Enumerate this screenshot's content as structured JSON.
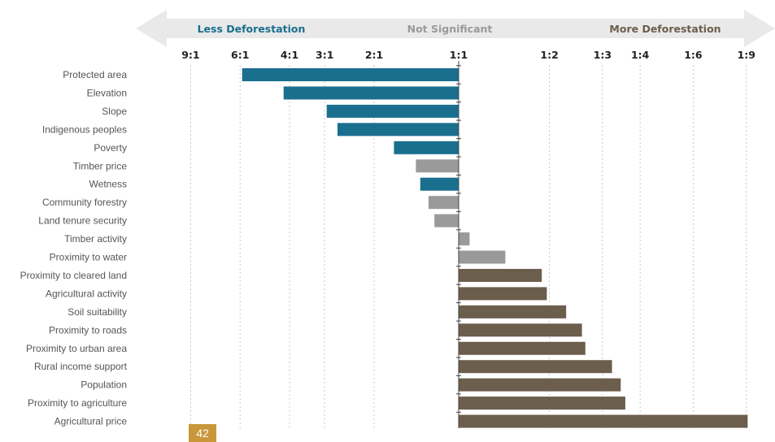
{
  "chart_data": {
    "type": "bar",
    "orientation": "horizontal",
    "scale": "odds ratio (log), 1:1 at center",
    "zones": [
      {
        "label": "Less Deforestation",
        "color": "#1a6f8e"
      },
      {
        "label": "Not Significant",
        "color": "#9a9a9a"
      },
      {
        "label": "More Deforestation",
        "color": "#6b5e4c"
      }
    ],
    "ticks": [
      {
        "label": "9:1",
        "ratio": 9
      },
      {
        "label": "6:1",
        "ratio": 6
      },
      {
        "label": "4:1",
        "ratio": 4
      },
      {
        "label": "3:1",
        "ratio": 3
      },
      {
        "label": "2:1",
        "ratio": 2
      },
      {
        "label": "1:1",
        "ratio": 1
      },
      {
        "label": "1:2",
        "ratio": 0.5
      },
      {
        "label": "1:3",
        "ratio": 0.3333
      },
      {
        "label": "1:4",
        "ratio": 0.25
      },
      {
        "label": "1:6",
        "ratio": 0.1667
      },
      {
        "label": "1:9",
        "ratio": 0.1111
      }
    ],
    "categories": [
      "Protected area",
      "Elevation",
      "Slope",
      "Indigenous peoples",
      "Poverty",
      "Timber price",
      "Wetness",
      "Community forestry",
      "Land tenure security",
      "Timber activity",
      "Proximity to water",
      "Proximity to cleared land",
      "Agricultural activity",
      "Soil suitability",
      "Proximity to roads",
      "Proximity to urban area",
      "Rural income support",
      "Population",
      "Proximity to agriculture",
      "Agricultural price"
    ],
    "values": [
      5.9,
      4.2,
      2.95,
      2.7,
      1.7,
      1.42,
      1.37,
      1.28,
      1.22,
      0.92,
      0.7,
      0.53,
      0.51,
      0.44,
      0.39,
      0.38,
      0.31,
      0.29,
      0.28,
      0.11
    ],
    "significance": [
      "less",
      "less",
      "less",
      "less",
      "less",
      "ns",
      "less",
      "ns",
      "ns",
      "ns",
      "ns",
      "more",
      "more",
      "more",
      "more",
      "more",
      "more",
      "more",
      "more",
      "more"
    ],
    "title": "",
    "xlabel": "",
    "ylabel": "",
    "grid": true
  },
  "page": {
    "number": "42"
  }
}
